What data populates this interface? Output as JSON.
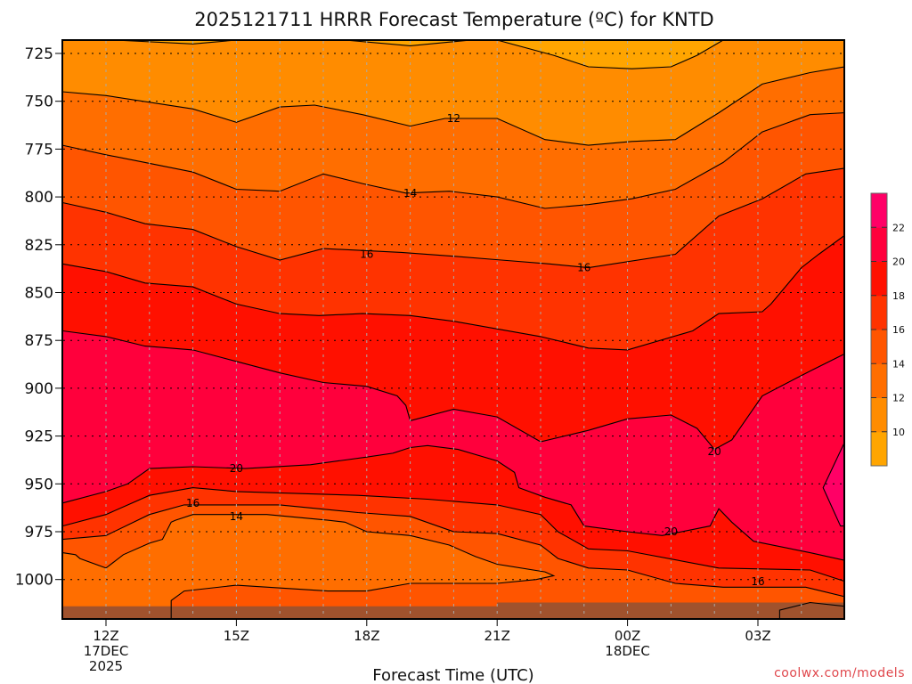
{
  "title": "2025121711 HRRR Forecast Temperature (ºC) for KNTD",
  "watermark": "coolwx.com/models",
  "chart_data": {
    "type": "contour",
    "title": "2025121711 HRRR Forecast Temperature (ºC) for KNTD",
    "xlabel": "Forecast Time (UTC)",
    "ylabel": "",
    "x_units": "hours after 12Z 17DEC 2025",
    "xlim": [
      -1,
      17
    ],
    "y_units": "hPa",
    "ylim": [
      1021,
      718
    ],
    "grid": true,
    "x_ticks": [
      {
        "hour": 0,
        "lines": [
          "12Z",
          "17DEC",
          "2025"
        ]
      },
      {
        "hour": 3,
        "lines": [
          "15Z"
        ]
      },
      {
        "hour": 6,
        "lines": [
          "18Z"
        ]
      },
      {
        "hour": 9,
        "lines": [
          "21Z"
        ]
      },
      {
        "hour": 12,
        "lines": [
          "00Z",
          "18DEC"
        ]
      },
      {
        "hour": 15,
        "lines": [
          "03Z"
        ]
      }
    ],
    "y_ticks": [
      "725",
      "750",
      "775",
      "800",
      "825",
      "850",
      "875",
      "900",
      "925",
      "950",
      "975",
      "1000"
    ],
    "colorbar": {
      "labels": [
        "10",
        "12",
        "14",
        "16",
        "18",
        "20",
        "22"
      ],
      "colors": [
        "#ffa500",
        "#ff8c00",
        "#ff6e00",
        "#ff5500",
        "#ff3300",
        "#ff1000",
        "#ff003c",
        "#ff0066"
      ],
      "placement": "right"
    },
    "ground_color": "#a0522d",
    "surface_pressure": [
      [
        -1,
        1014
      ],
      [
        9,
        1014
      ],
      [
        9,
        1012
      ],
      [
        17,
        1012
      ]
    ],
    "fills": [
      {
        "desc": "below isotherm 12 (upper)",
        "mode": "below",
        "color": "#ff6e00",
        "line": "upper_12"
      },
      {
        "desc": "below isotherm 14 (upper)",
        "mode": "below",
        "color": "#ff5500",
        "line": "upper_14"
      },
      {
        "desc": "below isotherm 16 (upper)",
        "mode": "below",
        "color": "#ff3300",
        "line": "upper_16"
      },
      {
        "desc": "below isotherm 18 (upper)",
        "mode": "below",
        "color": "#ff1000",
        "line": "upper_18"
      },
      {
        "desc": "below isotherm 20 (upper)",
        "mode": "below",
        "color": "#ff003c",
        "line": "upper_20"
      },
      {
        "desc": "above 22",
        "mode": "closed",
        "color": "#ff0066",
        "line": "warm_22"
      },
      {
        "desc": "below isotherm 20 (lower)",
        "mode": "below",
        "color": "#ff1000",
        "line": "lower_20"
      },
      {
        "desc": "below isotherm 18 (lower)",
        "mode": "below",
        "color": "#ff3300",
        "line": "lower_18"
      },
      {
        "desc": "below isotherm 16 (lower)",
        "mode": "below",
        "color": "#ff5500",
        "line": "lower_16"
      },
      {
        "desc": "inner 14 pocket",
        "mode": "closed",
        "color": "#ff6e00",
        "line": "lower_14"
      },
      {
        "desc": "surface 14 pocket",
        "mode": "closed",
        "color": "#ff6e00",
        "line": "surface_14"
      },
      {
        "desc": "top cold pocket a",
        "mode": "above",
        "color": "#ffa500",
        "line": "top_10a"
      },
      {
        "desc": "top cold pocket b",
        "mode": "above",
        "color": "#ffa500",
        "line": "top_10b"
      },
      {
        "desc": "top cold pocket c",
        "mode": "above",
        "color": "#ffa500",
        "line": "top_10c"
      }
    ],
    "background_color": "#ff8c00",
    "isotherms": {
      "top_10a": {
        "value": 10,
        "points": [
          [
            9.0,
            718
          ],
          [
            10.3,
            726
          ],
          [
            11.1,
            732
          ],
          [
            12.1,
            733
          ],
          [
            13.0,
            732
          ],
          [
            13.6,
            726
          ],
          [
            14.2,
            718
          ]
        ]
      },
      "top_10b": {
        "value": 10,
        "points": [
          [
            0.2,
            718
          ],
          [
            2.0,
            720
          ],
          [
            3.0,
            718
          ]
        ]
      },
      "top_10c": {
        "value": 10,
        "points": [
          [
            5.5,
            718
          ],
          [
            7.0,
            721
          ],
          [
            8.4,
            718
          ]
        ]
      },
      "upper_12": {
        "value": 12,
        "points": [
          [
            -1,
            745
          ],
          [
            0,
            747
          ],
          [
            2,
            754
          ],
          [
            3,
            761
          ],
          [
            4,
            753
          ],
          [
            4.8,
            752
          ],
          [
            5.9,
            757
          ],
          [
            7,
            763
          ],
          [
            7.8,
            759
          ],
          [
            9,
            759
          ],
          [
            10.1,
            770
          ],
          [
            11.1,
            773
          ],
          [
            12.1,
            771
          ],
          [
            13.1,
            770
          ],
          [
            14.1,
            756
          ],
          [
            15.1,
            741
          ],
          [
            16.2,
            735
          ],
          [
            17,
            732
          ]
        ]
      },
      "upper_14": {
        "value": 14,
        "points": [
          [
            -1,
            773
          ],
          [
            0,
            778
          ],
          [
            0.9,
            782
          ],
          [
            2,
            787
          ],
          [
            3,
            796
          ],
          [
            4,
            797
          ],
          [
            5,
            788
          ],
          [
            5.9,
            793
          ],
          [
            6.9,
            798
          ],
          [
            7.9,
            797
          ],
          [
            9,
            800
          ],
          [
            10.1,
            806
          ],
          [
            11.1,
            804
          ],
          [
            12.1,
            801
          ],
          [
            13.1,
            796
          ],
          [
            14.2,
            782
          ],
          [
            15.1,
            766
          ],
          [
            16.2,
            757
          ],
          [
            17,
            756
          ]
        ]
      },
      "upper_16": {
        "value": 16,
        "points": [
          [
            -1,
            803
          ],
          [
            0,
            808
          ],
          [
            0.9,
            814
          ],
          [
            2,
            817
          ],
          [
            3,
            826
          ],
          [
            4,
            833
          ],
          [
            5,
            827
          ],
          [
            6.8,
            829
          ],
          [
            8,
            831
          ],
          [
            9.1,
            833
          ],
          [
            10.2,
            835
          ],
          [
            11.1,
            837
          ],
          [
            13.1,
            830
          ],
          [
            14.1,
            810
          ],
          [
            15.1,
            801
          ],
          [
            16.1,
            788
          ],
          [
            17,
            785
          ]
        ]
      },
      "upper_18": {
        "value": 18,
        "points": [
          [
            -1,
            835
          ],
          [
            0,
            839
          ],
          [
            0.9,
            845
          ],
          [
            2,
            847
          ],
          [
            3,
            856
          ],
          [
            4,
            861
          ],
          [
            4.9,
            862
          ],
          [
            5.9,
            861
          ],
          [
            7,
            862
          ],
          [
            8,
            865
          ],
          [
            9,
            869
          ],
          [
            10,
            873
          ],
          [
            11.1,
            879
          ],
          [
            12,
            880
          ],
          [
            13.5,
            870
          ],
          [
            14.1,
            861
          ],
          [
            15.1,
            860
          ],
          [
            15.3,
            856
          ],
          [
            16,
            837
          ],
          [
            16.4,
            830
          ],
          [
            17,
            820
          ]
        ]
      },
      "upper_20": {
        "value": 20,
        "points": [
          [
            -1,
            870
          ],
          [
            0,
            873
          ],
          [
            0.9,
            878
          ],
          [
            2,
            880
          ],
          [
            3,
            886
          ],
          [
            4,
            892
          ],
          [
            5,
            897
          ],
          [
            6,
            899
          ],
          [
            6.7,
            904
          ],
          [
            6.9,
            909
          ],
          [
            7,
            917
          ],
          [
            8,
            911
          ],
          [
            9,
            915
          ],
          [
            10,
            928
          ],
          [
            11.1,
            922
          ],
          [
            12,
            916
          ],
          [
            13,
            914
          ],
          [
            13.6,
            921
          ],
          [
            14,
            932
          ],
          [
            14.4,
            927
          ],
          [
            15.1,
            904
          ],
          [
            16.2,
            891
          ],
          [
            17,
            882
          ]
        ]
      },
      "warm_22": {
        "value": 22,
        "points": [
          [
            17,
            928
          ],
          [
            16.5,
            952
          ],
          [
            16.9,
            972
          ],
          [
            17,
            972
          ]
        ]
      },
      "lower_20": {
        "value": 20,
        "points": [
          [
            -1,
            960
          ],
          [
            0,
            954
          ],
          [
            0.5,
            950
          ],
          [
            1,
            942
          ],
          [
            2,
            941
          ],
          [
            3.2,
            942
          ],
          [
            4.7,
            940
          ],
          [
            6,
            936
          ],
          [
            6.6,
            934
          ],
          [
            7,
            931
          ],
          [
            7.4,
            930
          ],
          [
            8.1,
            932
          ],
          [
            9,
            938
          ],
          [
            9.4,
            944
          ],
          [
            9.5,
            952
          ],
          [
            10.1,
            957
          ],
          [
            10.7,
            961
          ],
          [
            11,
            972
          ],
          [
            12,
            975
          ],
          [
            12.8,
            977
          ],
          [
            13.9,
            972
          ],
          [
            14.1,
            963
          ],
          [
            14.4,
            970
          ],
          [
            14.9,
            980
          ],
          [
            16.2,
            986
          ],
          [
            17,
            990
          ]
        ]
      },
      "lower_18": {
        "value": 18,
        "points": [
          [
            -1,
            972
          ],
          [
            0,
            966
          ],
          [
            1,
            956
          ],
          [
            2,
            952
          ],
          [
            3,
            954
          ],
          [
            5.8,
            956
          ],
          [
            7.4,
            958
          ],
          [
            9,
            961
          ],
          [
            10,
            966
          ],
          [
            10.4,
            975
          ],
          [
            11.1,
            984
          ],
          [
            12,
            985
          ],
          [
            14.1,
            994
          ],
          [
            16.2,
            995
          ],
          [
            17,
            1001
          ]
        ]
      },
      "lower_16": {
        "value": 16,
        "points": [
          [
            -1,
            979
          ],
          [
            0,
            977
          ],
          [
            1,
            966
          ],
          [
            1.8,
            961
          ],
          [
            4,
            961
          ],
          [
            5.8,
            965
          ],
          [
            7,
            967
          ],
          [
            8,
            975
          ],
          [
            9,
            976
          ],
          [
            10,
            982
          ],
          [
            10.4,
            989
          ],
          [
            11.1,
            994
          ],
          [
            12,
            995
          ],
          [
            13.1,
            1002
          ],
          [
            14.2,
            1004
          ],
          [
            16.1,
            1004
          ],
          [
            17,
            1009
          ]
        ]
      },
      "lower_14": {
        "value": 14,
        "points": [
          [
            -1,
            986
          ],
          [
            -0.7,
            987
          ],
          [
            -0.6,
            989
          ],
          [
            0,
            994
          ],
          [
            0.4,
            987
          ],
          [
            1,
            981
          ],
          [
            1.3,
            979
          ],
          [
            1.5,
            970
          ],
          [
            1.6,
            969
          ],
          [
            2,
            966
          ],
          [
            3.7,
            966
          ],
          [
            5.1,
            969
          ],
          [
            5.5,
            970
          ],
          [
            6,
            975
          ],
          [
            7,
            977
          ],
          [
            7.9,
            982
          ],
          [
            8.5,
            988
          ],
          [
            9,
            992
          ],
          [
            10.1,
            996
          ],
          [
            10.3,
            998
          ],
          [
            9.9,
            1000
          ],
          [
            9,
            1002
          ],
          [
            7,
            1002
          ],
          [
            6,
            1006
          ],
          [
            5.1,
            1006
          ],
          [
            3,
            1003
          ],
          [
            1.8,
            1006
          ],
          [
            1.5,
            1011
          ],
          [
            1.5,
            1021
          ],
          [
            -1,
            1021
          ]
        ]
      },
      "surface_14": {
        "value": 14,
        "points": [
          [
            15.5,
            1021
          ],
          [
            15.5,
            1016
          ],
          [
            16.2,
            1012
          ],
          [
            17,
            1014
          ],
          [
            17,
            1021
          ]
        ]
      }
    },
    "contour_labels": [
      {
        "text": "12",
        "at": [
          8,
          759
        ]
      },
      {
        "text": "14",
        "at": [
          7,
          798
        ]
      },
      {
        "text": "16",
        "at": [
          6,
          830
        ]
      },
      {
        "text": "16",
        "at": [
          11,
          837
        ]
      },
      {
        "text": "20",
        "at": [
          3,
          942
        ]
      },
      {
        "text": "16",
        "at": [
          2,
          960
        ]
      },
      {
        "text": "14",
        "at": [
          3,
          967
        ]
      },
      {
        "text": "20",
        "at": [
          14,
          933
        ]
      },
      {
        "text": "20",
        "at": [
          13,
          975
        ]
      },
      {
        "text": "16",
        "at": [
          15,
          1001
        ]
      }
    ]
  }
}
